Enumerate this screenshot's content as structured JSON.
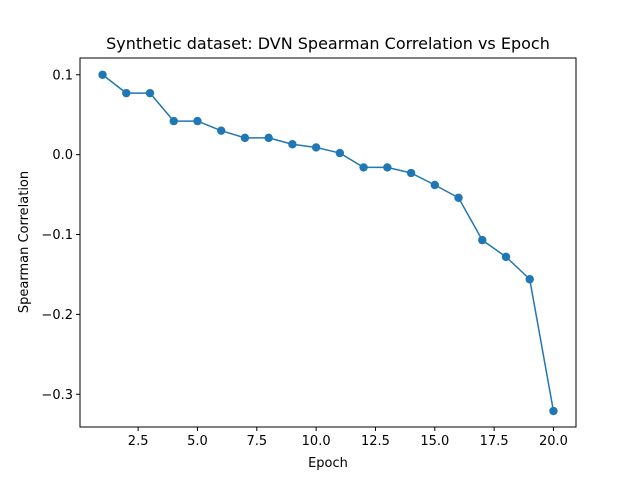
{
  "chart_data": {
    "type": "line",
    "title": "Synthetic dataset: DVN Spearman Correlation vs Epoch",
    "xlabel": "Epoch",
    "ylabel": "Spearman Correlation",
    "xlim": [
      0.05,
      20.95
    ],
    "ylim": [
      -0.341,
      0.121
    ],
    "x_ticks": [
      2.5,
      5.0,
      7.5,
      10.0,
      12.5,
      15.0,
      17.5,
      20.0
    ],
    "x_tick_labels": [
      "2.5",
      "5.0",
      "7.5",
      "10.0",
      "12.5",
      "15.0",
      "17.5",
      "20.0"
    ],
    "y_ticks": [
      0.1,
      0.0,
      -0.1,
      -0.2,
      -0.3
    ],
    "y_tick_labels": [
      "0.1",
      "0.0",
      "−0.1",
      "−0.2",
      "−0.3"
    ],
    "grid": false,
    "legend": "none",
    "marker": "circle",
    "color": "#1f77b4",
    "series": [
      {
        "x": [
          1,
          2,
          3,
          4,
          5,
          6,
          7,
          8,
          9,
          10,
          11,
          12,
          13,
          14,
          15,
          16,
          17,
          18,
          19,
          20
        ],
        "values": [
          0.1,
          0.077,
          0.077,
          0.042,
          0.042,
          0.03,
          0.021,
          0.021,
          0.013,
          0.009,
          0.002,
          -0.016,
          -0.016,
          -0.023,
          -0.038,
          -0.054,
          -0.107,
          -0.128,
          -0.156,
          -0.321
        ]
      }
    ]
  }
}
